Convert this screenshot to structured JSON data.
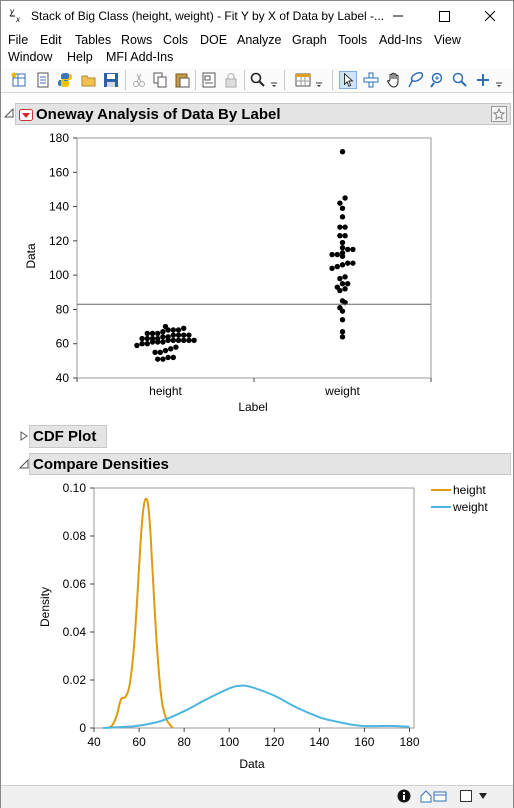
{
  "window": {
    "title": "Stack of Big Class (height, weight) - Fit Y by X of Data by Label -...",
    "icon_label": "y x",
    "minimize_icon": "minimize-icon",
    "maximize_icon": "maximize-icon",
    "close_icon": "close-icon"
  },
  "menu": {
    "row1": [
      "File",
      "Edit",
      "Tables",
      "Rows",
      "Cols",
      "DOE",
      "Analyze",
      "Graph",
      "Tools",
      "Add-Ins",
      "View"
    ],
    "row2": [
      "Window",
      "Help",
      "MFI Add-Ins"
    ]
  },
  "toolbar": {
    "icons": [
      "new-data-table-icon",
      "new-script-icon",
      "python-icon",
      "open-icon",
      "save-icon",
      "cut-icon",
      "copy-icon",
      "paste-icon",
      "journal-icon",
      "lock-icon",
      "search-icon",
      "data-table-icon",
      "arrow-tool-icon",
      "crosshair-tool-icon",
      "grabber-tool-icon",
      "lasso-tool-icon",
      "zoom-tool-icon",
      "plus-tool-icon"
    ]
  },
  "oneway": {
    "title": "Oneway Analysis of Data By Label",
    "red_triangle_icon": "red-triangle-icon",
    "pin_icon": "pin-icon"
  },
  "cdf": {
    "title": "CDF Plot"
  },
  "densities": {
    "title": "Compare Densities"
  },
  "legend": [
    {
      "name": "height",
      "color": "#e09a0e"
    },
    {
      "name": "weight",
      "color": "#4cb6e0"
    }
  ],
  "chart_data": [
    {
      "type": "scatter",
      "title": "",
      "xlabel": "Label",
      "ylabel": "Data",
      "categories": [
        "height",
        "weight"
      ],
      "ylim": [
        40,
        180
      ],
      "yticks": [
        40,
        60,
        80,
        100,
        120,
        140,
        160,
        180
      ],
      "mean_line": 83,
      "series": [
        {
          "category": "height",
          "values": [
            51,
            51,
            52,
            52,
            55,
            55,
            56,
            57,
            58,
            59,
            60,
            60,
            61,
            61,
            61,
            62,
            62,
            62,
            62,
            62,
            62,
            63,
            63,
            63,
            63,
            64,
            64,
            65,
            65,
            65,
            65,
            66,
            66,
            66,
            67,
            68,
            68,
            68,
            69,
            70
          ]
        },
        {
          "category": "weight",
          "values": [
            64,
            67,
            74,
            79,
            81,
            84,
            85,
            91,
            92,
            93,
            95,
            95,
            98,
            99,
            104,
            105,
            106,
            107,
            107,
            111,
            112,
            112,
            113,
            115,
            115,
            116,
            119,
            123,
            123,
            128,
            128,
            134,
            139,
            142,
            145,
            172
          ]
        }
      ]
    },
    {
      "type": "line",
      "title": "",
      "xlabel": "Data",
      "ylabel": "Density",
      "xlim": [
        40,
        182
      ],
      "ylim": [
        0,
        0.1
      ],
      "xticks": [
        40,
        60,
        80,
        100,
        120,
        140,
        160,
        180
      ],
      "yticks": [
        0,
        0.02,
        0.04,
        0.06,
        0.08,
        0.1
      ],
      "ytick_labels": [
        "0",
        "0.02",
        "0.04",
        "0.06",
        "0.08",
        "0.10"
      ],
      "legend_position": "right",
      "series": [
        {
          "name": "height",
          "x": [
            46,
            48,
            50,
            52,
            54,
            56,
            58,
            60,
            61,
            62,
            63,
            64,
            65,
            66,
            68,
            70,
            72,
            74,
            75
          ],
          "y": [
            0,
            0.001,
            0.005,
            0.012,
            0.013,
            0.019,
            0.037,
            0.067,
            0.082,
            0.092,
            0.0955,
            0.093,
            0.082,
            0.065,
            0.033,
            0.012,
            0.004,
            0.001,
            0
          ]
        },
        {
          "name": "weight",
          "x": [
            44,
            50,
            60,
            70,
            80,
            90,
            100,
            105,
            110,
            120,
            130,
            140,
            145,
            150,
            155,
            160,
            165,
            170,
            175,
            180
          ],
          "y": [
            0,
            0.0003,
            0.001,
            0.003,
            0.007,
            0.012,
            0.0165,
            0.0176,
            0.017,
            0.0135,
            0.0085,
            0.0045,
            0.0032,
            0.0022,
            0.0013,
            0.0008,
            0.0008,
            0.0009,
            0.0008,
            0.0005
          ]
        }
      ]
    }
  ]
}
